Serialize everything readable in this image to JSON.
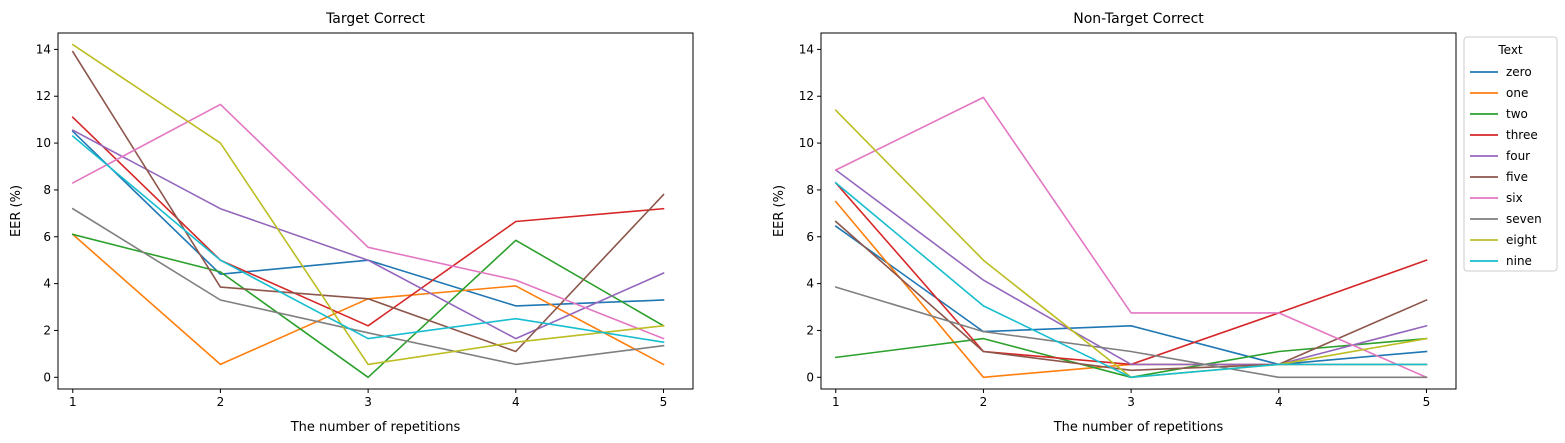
{
  "chart_data": [
    {
      "type": "line",
      "title": "Target Correct",
      "xlabel": "The number of repetitions",
      "ylabel": "EER (%)",
      "x": [
        1,
        2,
        3,
        4,
        5
      ],
      "xticks": [
        "1",
        "2",
        "3",
        "4",
        "5"
      ],
      "yticks": [
        "0",
        "2",
        "4",
        "6",
        "8",
        "10",
        "12",
        "14"
      ],
      "xlim": [
        0.9,
        5.2
      ],
      "ylim": [
        -0.5,
        14.7
      ],
      "grid": false,
      "series": [
        {
          "name": "zero",
          "color": "#1f77b4",
          "values": [
            10.5,
            4.4,
            5.0,
            3.05,
            3.3
          ]
        },
        {
          "name": "one",
          "color": "#ff7f0e",
          "values": [
            6.1,
            0.55,
            3.35,
            3.9,
            0.55
          ]
        },
        {
          "name": "two",
          "color": "#2ca02c",
          "values": [
            6.1,
            4.5,
            0.0,
            5.85,
            2.2
          ]
        },
        {
          "name": "three",
          "color": "#d62728",
          "values": [
            11.1,
            5.0,
            2.2,
            6.65,
            7.2
          ]
        },
        {
          "name": "four",
          "color": "#9467bd",
          "values": [
            10.55,
            7.2,
            5.0,
            1.65,
            4.45
          ]
        },
        {
          "name": "five",
          "color": "#8c564b",
          "values": [
            13.9,
            3.85,
            3.35,
            1.1,
            7.8
          ]
        },
        {
          "name": "six",
          "color": "#e377c2",
          "values": [
            8.3,
            11.65,
            5.55,
            4.15,
            1.65
          ]
        },
        {
          "name": "seven",
          "color": "#7f7f7f",
          "values": [
            7.2,
            3.3,
            1.9,
            0.55,
            1.35
          ]
        },
        {
          "name": "eight",
          "color": "#bcbd22",
          "values": [
            14.2,
            10.0,
            0.55,
            1.5,
            2.2
          ]
        },
        {
          "name": "nine",
          "color": "#17becf",
          "values": [
            10.3,
            5.0,
            1.65,
            2.5,
            1.5
          ]
        }
      ]
    },
    {
      "type": "line",
      "title": "Non-Target Correct",
      "xlabel": "The number of repetitions",
      "ylabel": "EER (%)",
      "x": [
        1,
        2,
        3,
        4,
        5
      ],
      "xticks": [
        "1",
        "2",
        "3",
        "4",
        "5"
      ],
      "yticks": [
        "0",
        "2",
        "4",
        "6",
        "8",
        "10",
        "12",
        "14"
      ],
      "xlim": [
        0.9,
        5.2
      ],
      "ylim": [
        -0.5,
        14.7
      ],
      "grid": false,
      "legend": {
        "title": "Text",
        "placement": "outside-right"
      },
      "series": [
        {
          "name": "zero",
          "color": "#1f77b4",
          "values": [
            6.45,
            1.95,
            2.2,
            0.55,
            1.1
          ]
        },
        {
          "name": "one",
          "color": "#ff7f0e",
          "values": [
            7.5,
            0.0,
            0.55,
            0.55,
            0.55
          ]
        },
        {
          "name": "two",
          "color": "#2ca02c",
          "values": [
            0.85,
            1.65,
            0.0,
            1.1,
            1.65
          ]
        },
        {
          "name": "three",
          "color": "#d62728",
          "values": [
            8.3,
            1.1,
            0.55,
            2.75,
            5.0
          ]
        },
        {
          "name": "four",
          "color": "#9467bd",
          "values": [
            8.85,
            4.15,
            0.55,
            0.55,
            2.2
          ]
        },
        {
          "name": "five",
          "color": "#8c564b",
          "values": [
            6.65,
            1.1,
            0.3,
            0.55,
            3.3
          ]
        },
        {
          "name": "six",
          "color": "#e377c2",
          "values": [
            8.85,
            11.95,
            2.75,
            2.75,
            0.0
          ]
        },
        {
          "name": "seven",
          "color": "#7f7f7f",
          "values": [
            3.85,
            1.95,
            1.1,
            0.0,
            0.0
          ]
        },
        {
          "name": "eight",
          "color": "#bcbd22",
          "values": [
            11.4,
            5.0,
            0.0,
            0.55,
            1.65
          ]
        },
        {
          "name": "nine",
          "color": "#17becf",
          "values": [
            8.3,
            3.05,
            0.0,
            0.55,
            0.55
          ]
        }
      ]
    }
  ]
}
